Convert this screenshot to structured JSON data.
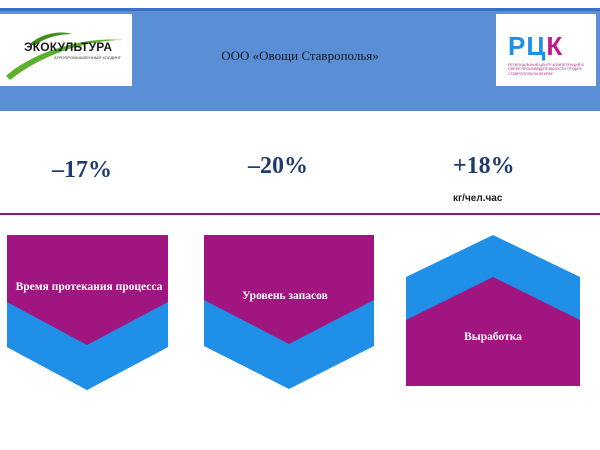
{
  "header": {
    "company": "ООО «Овощи Ставрополья»",
    "left_logo": {
      "name": "ЭКОКУЛЬТУРА",
      "tagline": "АГРОПРОМЫШЛЕННЫЙ ХОЛДИНГ"
    },
    "right_logo": {
      "name": "РЦК",
      "tagline": "РЕГИОНАЛЬНЫЙ ЦЕНТР КОМПЕТЕНЦИЙ В СФЕРЕ ПРОИЗВОДИТЕЛЬНОСТИ ТРУДА В СТАВРОПОЛЬСКОМ КРАЕ"
    }
  },
  "metrics": [
    {
      "value": "–17%"
    },
    {
      "value": "–20%"
    },
    {
      "value": "+18%",
      "unit": "кг/чел.час"
    }
  ],
  "shapes": [
    {
      "label": "Время протекания процесса"
    },
    {
      "label": "Уровень запасов"
    },
    {
      "label": "Выработка"
    }
  ],
  "colors": {
    "header_blue": "#5a8fd6",
    "magenta": "#a0157f",
    "blue": "#1f8fe8",
    "metric_text": "#1f3c6e"
  }
}
